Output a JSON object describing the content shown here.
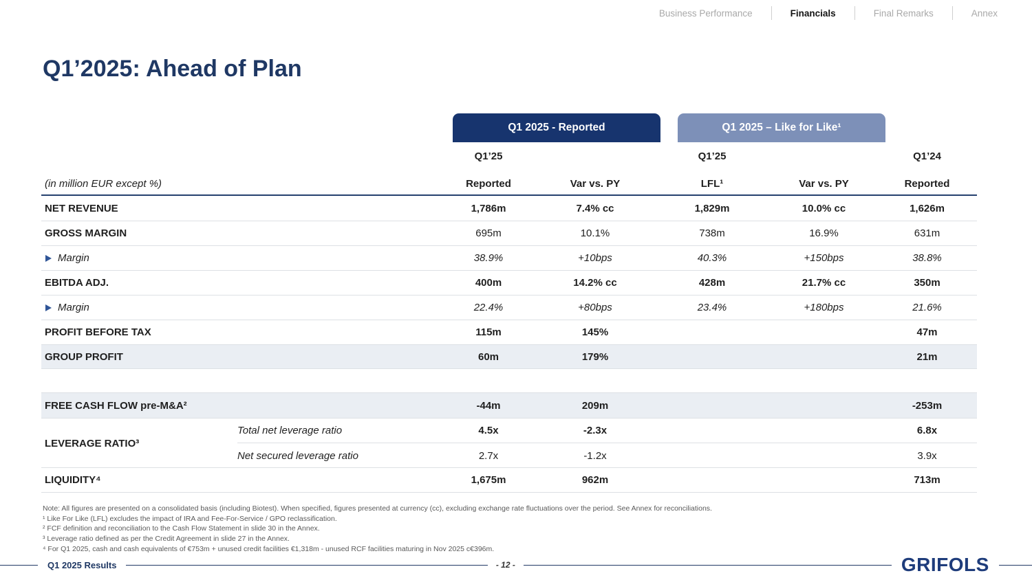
{
  "nav": {
    "items": [
      {
        "label": "Business Performance",
        "active": false
      },
      {
        "label": "Financials",
        "active": true
      },
      {
        "label": "Final Remarks",
        "active": false
      },
      {
        "label": "Annex",
        "active": false
      }
    ]
  },
  "title": "Q1’2025: Ahead of Plan",
  "table": {
    "unit_note": "(in million EUR except %)",
    "group_headers": [
      {
        "label": "Q1 2025 - Reported"
      },
      {
        "label": "Q1 2025 – Like for Like¹"
      }
    ],
    "period_headers": [
      "Q1’25",
      "Q1’25",
      "Q1’24"
    ],
    "col_headers": [
      "Reported",
      "Var vs. PY",
      "LFL¹",
      "Var vs. PY",
      "Reported"
    ],
    "sections": [
      {
        "rows": [
          {
            "label": "NET REVENUE",
            "label_bold": true,
            "values_bold": true,
            "values": [
              "1,786m",
              "7.4% cc",
              "1,829m",
              "10.0% cc",
              "1,626m"
            ]
          },
          {
            "label": "GROSS MARGIN",
            "label_bold": true,
            "values_bold": false,
            "values": [
              "695m",
              "10.1%",
              "738m",
              "16.9%",
              "631m"
            ]
          },
          {
            "label": "Margin",
            "arrow": true,
            "italic": true,
            "values": [
              "38.9%",
              "+10bps",
              "40.3%",
              "+150bps",
              "38.8%"
            ]
          },
          {
            "label": "EBITDA ADJ.",
            "label_bold": true,
            "values_bold": true,
            "values": [
              "400m",
              "14.2% cc",
              "428m",
              "21.7% cc",
              "350m"
            ]
          },
          {
            "label": "Margin",
            "arrow": true,
            "italic": true,
            "values": [
              "22.4%",
              "+80bps",
              "23.4%",
              "+180bps",
              "21.6%"
            ]
          },
          {
            "label": "PROFIT BEFORE TAX",
            "label_bold": true,
            "values_bold": true,
            "values": [
              "115m",
              "145%",
              "",
              "",
              "47m"
            ]
          },
          {
            "label": "GROUP PROFIT",
            "label_bold": true,
            "values_bold": true,
            "shaded": true,
            "values": [
              "60m",
              "179%",
              "",
              "",
              "21m"
            ]
          }
        ]
      },
      {
        "rows": [
          {
            "label": "FREE CASH FLOW pre-M&A²",
            "label_bold": true,
            "values_bold": true,
            "shaded": true,
            "values": [
              "-44m",
              "209m",
              "",
              "",
              "-253m"
            ]
          },
          {
            "type": "group",
            "label": "LEVERAGE RATIO³",
            "subrows": [
              {
                "name": "Total net leverage ratio",
                "bold": true,
                "values": [
                  "4.5x",
                  "-2.3x",
                  "",
                  "",
                  "6.8x"
                ]
              },
              {
                "name": "Net secured leverage ratio",
                "bold": false,
                "values": [
                  "2.7x",
                  "-1.2x",
                  "",
                  "",
                  "3.9x"
                ]
              }
            ]
          },
          {
            "label": "LIQUIDITY⁴",
            "label_bold": true,
            "values_bold": true,
            "values": [
              "1,675m",
              "962m",
              "",
              "",
              "713m"
            ]
          }
        ]
      }
    ]
  },
  "footnotes": [
    "Note: All figures are presented on a consolidated basis (including Biotest). When specified, figures presented at currency (cc), excluding exchange rate fluctuations over the period. See Annex for reconciliations.",
    "¹ Like For Like (LFL) excludes the impact of IRA and Fee-For-Service / GPO reclassification.",
    "² FCF definition and reconciliation to the Cash Flow Statement in slide 30 in the Annex.",
    "³ Leverage ratio defined as per the Credit Agreement in slide 27 in the Annex.",
    "⁴ For Q1 2025, cash and cash equivalents of €753m + unused credit facilities €1,318m - unused RCF facilities maturing in Nov 2025 c€396m."
  ],
  "footer": {
    "left": "Q1 2025 Results",
    "page": "- 12 -",
    "logo": "GRIFOLS"
  },
  "colors": {
    "navy": "#1F3864",
    "box_dark": "#17346E",
    "box_light": "#7D90B8",
    "row_shade": "#EAEEF3",
    "accent_triangle": "#2F5597"
  }
}
